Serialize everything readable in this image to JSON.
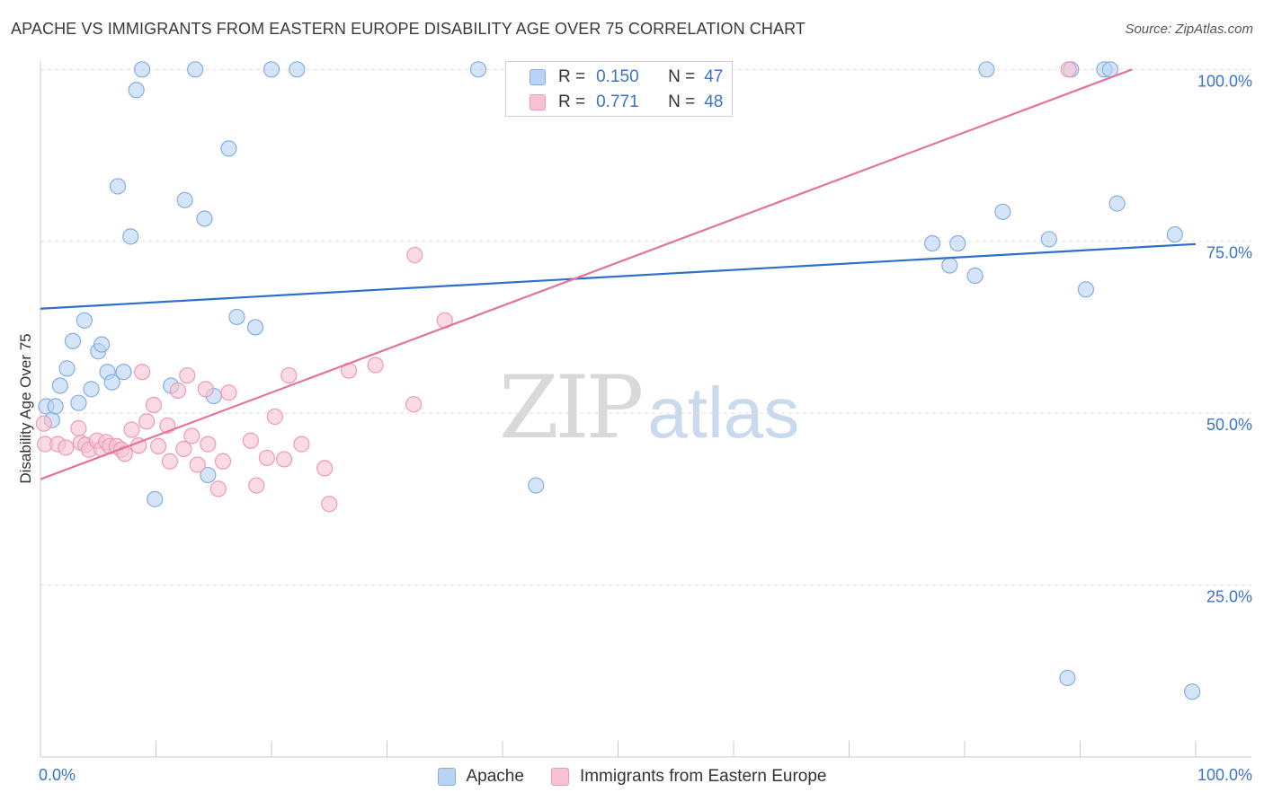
{
  "title": "APACHE VS IMMIGRANTS FROM EASTERN EUROPE DISABILITY AGE OVER 75 CORRELATION CHART",
  "source": "Source: ZipAtlas.com",
  "watermark": {
    "zip": "ZIP",
    "atlas": "atlas"
  },
  "legend_top": [
    {
      "r_key": "R =",
      "r_value": "0.150",
      "n_key": "N =",
      "n_value": "47"
    },
    {
      "r_key": "R =",
      "r_value": "0.771",
      "n_key": "N =",
      "n_value": "48"
    }
  ],
  "colors": {
    "apache_fill": "#b8d3f3",
    "apache_stroke": "#86aee3",
    "apache_line": "#2e6fc7",
    "eastern_fill": "#f7c3d3",
    "eastern_stroke": "#ee9ab5",
    "eastern_line": "#e4739b",
    "tick_label": "#3a73c9",
    "grid": "#dddddd"
  },
  "chart_data": {
    "type": "scatter",
    "title": "APACHE VS IMMIGRANTS FROM EASTERN EUROPE DISABILITY AGE OVER 75 CORRELATION CHART",
    "xlabel": "",
    "ylabel": "Disability Age Over 75",
    "xlim": [
      0,
      100
    ],
    "ylim": [
      0,
      102
    ],
    "x_tick_labels": [
      "0.0%",
      "100.0%"
    ],
    "y_ticks": [
      25,
      50,
      75,
      100
    ],
    "y_tick_labels": [
      "25.0%",
      "50.0%",
      "75.0%",
      "100.0%"
    ],
    "grid": true,
    "legend_position": "bottom",
    "series": [
      {
        "name": "Apache",
        "r": 0.15,
        "n": 47,
        "trend": [
          [
            0,
            65.2
          ],
          [
            100,
            74.6
          ]
        ],
        "points": [
          [
            0.5,
            51
          ],
          [
            1.0,
            49
          ],
          [
            1.3,
            51
          ],
          [
            1.7,
            54
          ],
          [
            2.3,
            56.5
          ],
          [
            2.8,
            60.5
          ],
          [
            3.3,
            51.5
          ],
          [
            3.8,
            63.5
          ],
          [
            4.4,
            53.5
          ],
          [
            5.0,
            59
          ],
          [
            5.3,
            60
          ],
          [
            5.8,
            56
          ],
          [
            6.2,
            54.5
          ],
          [
            6.7,
            83
          ],
          [
            7.2,
            56
          ],
          [
            7.8,
            75.7
          ],
          [
            8.3,
            97
          ],
          [
            8.8,
            100
          ],
          [
            9.9,
            37.5
          ],
          [
            11.3,
            54
          ],
          [
            12.5,
            81
          ],
          [
            13.4,
            100
          ],
          [
            14.2,
            78.3
          ],
          [
            14.5,
            41
          ],
          [
            15.0,
            52.5
          ],
          [
            16.3,
            88.5
          ],
          [
            17.0,
            64
          ],
          [
            18.6,
            62.5
          ],
          [
            20.0,
            100
          ],
          [
            22.2,
            100
          ],
          [
            37.9,
            100
          ],
          [
            42.9,
            39.5
          ],
          [
            77.2,
            74.7
          ],
          [
            78.7,
            71.5
          ],
          [
            79.4,
            74.7
          ],
          [
            80.9,
            70
          ],
          [
            81.9,
            100
          ],
          [
            83.3,
            79.3
          ],
          [
            87.3,
            75.3
          ],
          [
            88.9,
            11.5
          ],
          [
            89.2,
            100
          ],
          [
            90.5,
            68
          ],
          [
            92.1,
            100
          ],
          [
            92.6,
            100
          ],
          [
            93.2,
            80.5
          ],
          [
            98.2,
            76
          ],
          [
            99.7,
            9.5
          ]
        ]
      },
      {
        "name": "Immigrants from Eastern Europe",
        "r": 0.771,
        "n": 48,
        "trend": [
          [
            0,
            40.4
          ],
          [
            94.5,
            100
          ]
        ],
        "points": [
          [
            0.3,
            48.5
          ],
          [
            0.4,
            45.5
          ],
          [
            1.5,
            45.5
          ],
          [
            2.2,
            45
          ],
          [
            3.3,
            47.8
          ],
          [
            3.5,
            45.7
          ],
          [
            3.9,
            45.4
          ],
          [
            4.2,
            44.7
          ],
          [
            4.9,
            46
          ],
          [
            5.3,
            44.8
          ],
          [
            5.7,
            45.8
          ],
          [
            6.0,
            45.2
          ],
          [
            6.6,
            45.2
          ],
          [
            7.0,
            44.7
          ],
          [
            7.3,
            44.1
          ],
          [
            7.9,
            47.6
          ],
          [
            8.5,
            45.3
          ],
          [
            8.8,
            56
          ],
          [
            9.2,
            48.8
          ],
          [
            9.8,
            51.2
          ],
          [
            10.2,
            45.2
          ],
          [
            11.0,
            48.2
          ],
          [
            11.2,
            43
          ],
          [
            11.9,
            53.3
          ],
          [
            12.4,
            44.8
          ],
          [
            12.7,
            55.5
          ],
          [
            13.1,
            46.7
          ],
          [
            13.6,
            42.5
          ],
          [
            14.3,
            53.5
          ],
          [
            14.5,
            45.5
          ],
          [
            15.4,
            39
          ],
          [
            15.8,
            43
          ],
          [
            16.3,
            53
          ],
          [
            18.2,
            46
          ],
          [
            18.7,
            39.5
          ],
          [
            19.6,
            43.5
          ],
          [
            20.3,
            49.5
          ],
          [
            21.1,
            43.3
          ],
          [
            21.5,
            55.5
          ],
          [
            22.6,
            45.5
          ],
          [
            24.6,
            42
          ],
          [
            25.0,
            36.8
          ],
          [
            26.7,
            56.2
          ],
          [
            29.0,
            57
          ],
          [
            32.3,
            51.3
          ],
          [
            32.4,
            73
          ],
          [
            35.0,
            63.5
          ],
          [
            89.0,
            100
          ]
        ]
      }
    ]
  }
}
